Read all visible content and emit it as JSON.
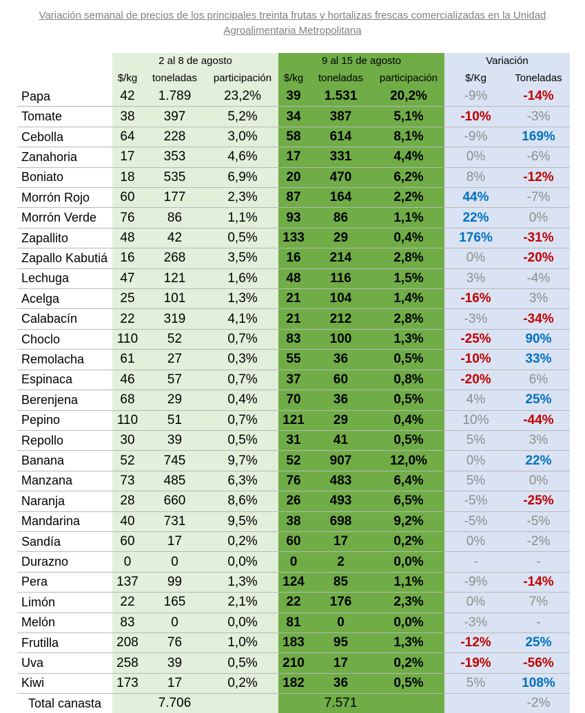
{
  "title": {
    "line1": "Variación semanal de precios de los principales treinta frutas y hortalizas frescas comercializadas en la Unidad",
    "line2": "Agroalimentaria Metropolitana"
  },
  "groups": {
    "week1": "2 al 8 de agosto",
    "week2": "9 al 15 de agosto",
    "variation": "Variación"
  },
  "subheaders": {
    "w1_price": "$/kg",
    "w1_tons": "toneladas",
    "w1_share": "participación",
    "w2_price": "$/kg",
    "w2_tons": "toneladas",
    "w2_share": "participación",
    "var_price": "$/Kg",
    "var_tons": "Toneladas"
  },
  "colors": {
    "week1_bg": "#e2efda",
    "week2_bg": "#70ad47",
    "variation_bg": "#dae3f3",
    "negative": "#c00000",
    "positive": "#0070c0",
    "neutral": "#8c8c8c"
  },
  "rows": [
    {
      "name": "Papa",
      "p1": "42",
      "t1": "1.789",
      "s1": "23,2%",
      "p2": "39",
      "t2": "1.531",
      "s2": "20,2%",
      "vp": "-9%",
      "vpc": "gray",
      "vt": "-14%",
      "vtc": "red"
    },
    {
      "name": "Tomate",
      "p1": "38",
      "t1": "397",
      "s1": "5,2%",
      "p2": "34",
      "t2": "387",
      "s2": "5,1%",
      "vp": "-10%",
      "vpc": "red",
      "vt": "-3%",
      "vtc": "gray"
    },
    {
      "name": "Cebolla",
      "p1": "64",
      "t1": "228",
      "s1": "3,0%",
      "p2": "58",
      "t2": "614",
      "s2": "8,1%",
      "vp": "-9%",
      "vpc": "gray",
      "vt": "169%",
      "vtc": "blue"
    },
    {
      "name": "Zanahoria",
      "p1": "17",
      "t1": "353",
      "s1": "4,6%",
      "p2": "17",
      "t2": "331",
      "s2": "4,4%",
      "vp": "0%",
      "vpc": "gray",
      "vt": "-6%",
      "vtc": "gray"
    },
    {
      "name": "Boniato",
      "p1": "18",
      "t1": "535",
      "s1": "6,9%",
      "p2": "20",
      "t2": "470",
      "s2": "6,2%",
      "vp": "8%",
      "vpc": "gray",
      "vt": "-12%",
      "vtc": "red"
    },
    {
      "name": "Morrón Rojo",
      "p1": "60",
      "t1": "177",
      "s1": "2,3%",
      "p2": "87",
      "t2": "164",
      "s2": "2,2%",
      "vp": "44%",
      "vpc": "blue",
      "vt": "-7%",
      "vtc": "gray"
    },
    {
      "name": "Morrón Verde",
      "p1": "76",
      "t1": "86",
      "s1": "1,1%",
      "p2": "93",
      "t2": "86",
      "s2": "1,1%",
      "vp": "22%",
      "vpc": "blue",
      "vt": "0%",
      "vtc": "gray"
    },
    {
      "name": "Zapallito",
      "p1": "48",
      "t1": "42",
      "s1": "0,5%",
      "p2": "133",
      "t2": "29",
      "s2": "0,4%",
      "vp": "176%",
      "vpc": "blue",
      "vt": "-31%",
      "vtc": "red"
    },
    {
      "name": "Zapallo Kabutiá",
      "p1": "16",
      "t1": "268",
      "s1": "3,5%",
      "p2": "16",
      "t2": "214",
      "s2": "2,8%",
      "vp": "0%",
      "vpc": "gray",
      "vt": "-20%",
      "vtc": "red"
    },
    {
      "name": "Lechuga",
      "p1": "47",
      "t1": "121",
      "s1": "1,6%",
      "p2": "48",
      "t2": "116",
      "s2": "1,5%",
      "vp": "3%",
      "vpc": "gray",
      "vt": "-4%",
      "vtc": "gray"
    },
    {
      "name": "Acelga",
      "p1": "25",
      "t1": "101",
      "s1": "1,3%",
      "p2": "21",
      "t2": "104",
      "s2": "1,4%",
      "vp": "-16%",
      "vpc": "red",
      "vt": "3%",
      "vtc": "gray"
    },
    {
      "name": "Calabacín",
      "p1": "22",
      "t1": "319",
      "s1": "4,1%",
      "p2": "21",
      "t2": "212",
      "s2": "2,8%",
      "vp": "-3%",
      "vpc": "gray",
      "vt": "-34%",
      "vtc": "red"
    },
    {
      "name": "Choclo",
      "p1": "110",
      "t1": "52",
      "s1": "0,7%",
      "p2": "83",
      "t2": "100",
      "s2": "1,3%",
      "vp": "-25%",
      "vpc": "red",
      "vt": "90%",
      "vtc": "blue"
    },
    {
      "name": "Remolacha",
      "p1": "61",
      "t1": "27",
      "s1": "0,3%",
      "p2": "55",
      "t2": "36",
      "s2": "0,5%",
      "vp": "-10%",
      "vpc": "red",
      "vt": "33%",
      "vtc": "blue"
    },
    {
      "name": "Espinaca",
      "p1": "46",
      "t1": "57",
      "s1": "0,7%",
      "p2": "37",
      "t2": "60",
      "s2": "0,8%",
      "vp": "-20%",
      "vpc": "red",
      "vt": "6%",
      "vtc": "gray"
    },
    {
      "name": "Berenjena",
      "p1": "68",
      "t1": "29",
      "s1": "0,4%",
      "p2": "70",
      "t2": "36",
      "s2": "0,5%",
      "vp": "4%",
      "vpc": "gray",
      "vt": "25%",
      "vtc": "blue"
    },
    {
      "name": "Pepino",
      "p1": "110",
      "t1": "51",
      "s1": "0,7%",
      "p2": "121",
      "t2": "29",
      "s2": "0,4%",
      "vp": "10%",
      "vpc": "gray",
      "vt": "-44%",
      "vtc": "red"
    },
    {
      "name": "Repollo",
      "p1": "30",
      "t1": "39",
      "s1": "0,5%",
      "p2": "31",
      "t2": "41",
      "s2": "0,5%",
      "vp": "5%",
      "vpc": "gray",
      "vt": "3%",
      "vtc": "gray"
    },
    {
      "name": "Banana",
      "p1": "52",
      "t1": "745",
      "s1": "9,7%",
      "p2": "52",
      "t2": "907",
      "s2": "12,0%",
      "vp": "0%",
      "vpc": "gray",
      "vt": "22%",
      "vtc": "blue"
    },
    {
      "name": "Manzana",
      "p1": "73",
      "t1": "485",
      "s1": "6,3%",
      "p2": "76",
      "t2": "483",
      "s2": "6,4%",
      "vp": "5%",
      "vpc": "gray",
      "vt": "0%",
      "vtc": "gray"
    },
    {
      "name": "Naranja",
      "p1": "28",
      "t1": "660",
      "s1": "8,6%",
      "p2": "26",
      "t2": "493",
      "s2": "6,5%",
      "vp": "-5%",
      "vpc": "gray",
      "vt": "-25%",
      "vtc": "red"
    },
    {
      "name": "Mandarina",
      "p1": "40",
      "t1": "731",
      "s1": "9,5%",
      "p2": "38",
      "t2": "698",
      "s2": "9,2%",
      "vp": "-5%",
      "vpc": "gray",
      "vt": "-5%",
      "vtc": "gray"
    },
    {
      "name": "Sandía",
      "p1": "60",
      "t1": "17",
      "s1": "0,2%",
      "p2": "60",
      "t2": "17",
      "s2": "0,2%",
      "vp": "0%",
      "vpc": "gray",
      "vt": "-2%",
      "vtc": "gray"
    },
    {
      "name": "Durazno",
      "p1": "0",
      "t1": "0",
      "s1": "0,0%",
      "p2": "0",
      "t2": "2",
      "s2": "0,0%",
      "vp": "-",
      "vpc": "gray",
      "vt": "-",
      "vtc": "gray"
    },
    {
      "name": "Pera",
      "p1": "137",
      "t1": "99",
      "s1": "1,3%",
      "p2": "124",
      "t2": "85",
      "s2": "1,1%",
      "vp": "-9%",
      "vpc": "gray",
      "vt": "-14%",
      "vtc": "red"
    },
    {
      "name": "Limón",
      "p1": "22",
      "t1": "165",
      "s1": "2,1%",
      "p2": "22",
      "t2": "176",
      "s2": "2,3%",
      "vp": "0%",
      "vpc": "gray",
      "vt": "7%",
      "vtc": "gray"
    },
    {
      "name": "Melón",
      "p1": "83",
      "t1": "0",
      "s1": "0,0%",
      "p2": "81",
      "t2": "0",
      "s2": "0,0%",
      "vp": "-3%",
      "vpc": "gray",
      "vt": "-",
      "vtc": "gray"
    },
    {
      "name": "Frutilla",
      "p1": "208",
      "t1": "76",
      "s1": "1,0%",
      "p2": "183",
      "t2": "95",
      "s2": "1,3%",
      "vp": "-12%",
      "vpc": "red",
      "vt": "25%",
      "vtc": "blue"
    },
    {
      "name": "Uva",
      "p1": "258",
      "t1": "39",
      "s1": "0,5%",
      "p2": "210",
      "t2": "17",
      "s2": "0,2%",
      "vp": "-19%",
      "vpc": "red",
      "vt": "-56%",
      "vtc": "red"
    },
    {
      "name": "Kiwi",
      "p1": "173",
      "t1": "17",
      "s1": "0,2%",
      "p2": "182",
      "t2": "36",
      "s2": "0,5%",
      "vp": "5%",
      "vpc": "gray",
      "vt": "108%",
      "vtc": "blue"
    }
  ],
  "total": {
    "label": "Total canasta",
    "t1": "7.706",
    "t2": "7.571",
    "vt": "-2%"
  }
}
